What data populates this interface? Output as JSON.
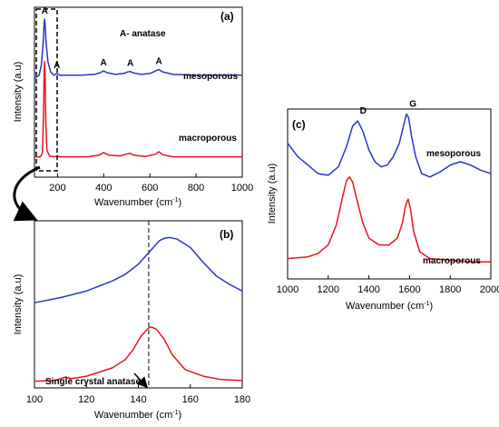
{
  "panels": [
    {
      "id": "a",
      "label": "(a)",
      "ylabel": "Intensity (a.u)",
      "xlabel_main": "Wavenumber (cm",
      "xlabel_sup": "-1",
      "xlabel_tail": ")",
      "xtick_labels": [
        "200",
        "400",
        "600",
        "800",
        "1000"
      ],
      "legend_text": "A- anatase",
      "peak_marker": "A",
      "series_labels": [
        "mesoporous",
        "macroporous"
      ]
    },
    {
      "id": "b",
      "label": "(b)",
      "ylabel": "Intensity (a.u)",
      "xlabel_main": "Wavenumber (cm",
      "xlabel_sup": "-1",
      "xlabel_tail": ")",
      "xtick_labels": [
        "100",
        "120",
        "140",
        "160",
        "180"
      ],
      "annotation": "Single crystal anatase"
    },
    {
      "id": "c",
      "label": "(c)",
      "ylabel": "Intensity (a.u)",
      "xlabel_main": "Wavenumber (cm",
      "xlabel_sup": "-1",
      "xlabel_tail": ")",
      "xtick_labels": [
        "1000",
        "1200",
        "1400",
        "1600",
        "1800",
        "2000"
      ],
      "peak_labels": [
        "D",
        "G"
      ],
      "series_labels": [
        "mesoporous",
        "macroporous"
      ]
    }
  ],
  "chart_data": [
    {
      "type": "line",
      "panel": "a",
      "xlim": [
        100,
        1000
      ],
      "ylim": [
        0,
        1
      ],
      "xticks": [
        200,
        400,
        600,
        800,
        1000
      ],
      "peak_positions": [
        144,
        197,
        399,
        515,
        639
      ],
      "series": [
        {
          "name": "mesoporous",
          "color": "#2a35c8",
          "x": [
            100,
            120,
            130,
            138,
            142,
            144,
            146,
            150,
            158,
            170,
            185,
            197,
            210,
            240,
            300,
            360,
            385,
            399,
            415,
            450,
            490,
            505,
            515,
            525,
            560,
            600,
            625,
            639,
            655,
            700,
            800,
            900,
            1000
          ],
          "y": [
            0.58,
            0.6,
            0.66,
            0.8,
            0.91,
            0.93,
            0.9,
            0.8,
            0.68,
            0.62,
            0.6,
            0.61,
            0.6,
            0.6,
            0.6,
            0.605,
            0.615,
            0.625,
            0.615,
            0.605,
            0.612,
            0.62,
            0.622,
            0.615,
            0.605,
            0.61,
            0.625,
            0.633,
            0.62,
            0.605,
            0.6,
            0.6,
            0.6
          ]
        },
        {
          "name": "macroporous",
          "color": "#e8141c",
          "x": [
            100,
            125,
            134,
            139,
            142,
            144,
            146,
            149,
            154,
            165,
            185,
            197,
            210,
            260,
            330,
            380,
            399,
            420,
            470,
            505,
            515,
            528,
            580,
            625,
            639,
            655,
            700,
            800,
            900,
            1000
          ],
          "y": [
            0.12,
            0.12,
            0.14,
            0.35,
            0.62,
            0.68,
            0.6,
            0.32,
            0.16,
            0.125,
            0.12,
            0.125,
            0.12,
            0.12,
            0.12,
            0.13,
            0.145,
            0.13,
            0.125,
            0.138,
            0.14,
            0.13,
            0.122,
            0.135,
            0.15,
            0.132,
            0.12,
            0.12,
            0.12,
            0.12
          ]
        }
      ]
    },
    {
      "type": "line",
      "panel": "b",
      "xlim": [
        100,
        180
      ],
      "ylim": [
        0,
        1
      ],
      "xticks": [
        100,
        120,
        140,
        160,
        180
      ],
      "reference_x": 144,
      "series": [
        {
          "name": "mesoporous",
          "color": "#2a35c8",
          "x": [
            100,
            110,
            120,
            130,
            135,
            140,
            144,
            148,
            150,
            152,
            155,
            160,
            165,
            170,
            175,
            180
          ],
          "y": [
            0.51,
            0.54,
            0.58,
            0.64,
            0.68,
            0.74,
            0.81,
            0.88,
            0.895,
            0.9,
            0.89,
            0.84,
            0.75,
            0.67,
            0.62,
            0.58
          ]
        },
        {
          "name": "macroporous",
          "color": "#e8141c",
          "x": [
            100,
            108,
            110,
            112,
            114,
            120,
            130,
            135,
            138,
            141,
            144,
            145,
            147,
            150,
            153,
            158,
            165,
            172,
            180
          ],
          "y": [
            0.04,
            0.045,
            0.055,
            0.065,
            0.055,
            0.07,
            0.12,
            0.17,
            0.23,
            0.31,
            0.36,
            0.365,
            0.35,
            0.29,
            0.2,
            0.11,
            0.07,
            0.05,
            0.045
          ]
        }
      ]
    },
    {
      "type": "line",
      "panel": "c",
      "xlim": [
        1000,
        2000
      ],
      "ylim": [
        0,
        1
      ],
      "xticks": [
        1000,
        1200,
        1400,
        1600,
        1800,
        2000
      ],
      "peak_positions": [
        1345,
        1590
      ],
      "series": [
        {
          "name": "mesoporous",
          "color": "#2a35c8",
          "x": [
            1000,
            1050,
            1100,
            1150,
            1200,
            1250,
            1290,
            1320,
            1345,
            1370,
            1400,
            1430,
            1460,
            1490,
            1520,
            1550,
            1570,
            1585,
            1595,
            1610,
            1630,
            1660,
            1700,
            1750,
            1800,
            1850,
            1900,
            1950,
            2000
          ],
          "y": [
            0.8,
            0.72,
            0.67,
            0.62,
            0.61,
            0.66,
            0.78,
            0.9,
            0.93,
            0.87,
            0.76,
            0.69,
            0.66,
            0.67,
            0.72,
            0.8,
            0.9,
            0.97,
            0.95,
            0.84,
            0.72,
            0.62,
            0.6,
            0.63,
            0.67,
            0.69,
            0.67,
            0.64,
            0.62
          ]
        },
        {
          "name": "macroporous",
          "color": "#e8141c",
          "x": [
            1000,
            1100,
            1150,
            1200,
            1240,
            1270,
            1290,
            1305,
            1320,
            1340,
            1370,
            1400,
            1450,
            1500,
            1540,
            1565,
            1580,
            1593,
            1605,
            1620,
            1650,
            1700,
            1800,
            1900,
            2000
          ],
          "y": [
            0.12,
            0.13,
            0.15,
            0.2,
            0.32,
            0.48,
            0.58,
            0.6,
            0.57,
            0.47,
            0.33,
            0.24,
            0.2,
            0.2,
            0.24,
            0.33,
            0.43,
            0.47,
            0.41,
            0.28,
            0.16,
            0.12,
            0.11,
            0.1,
            0.1
          ]
        }
      ]
    }
  ]
}
